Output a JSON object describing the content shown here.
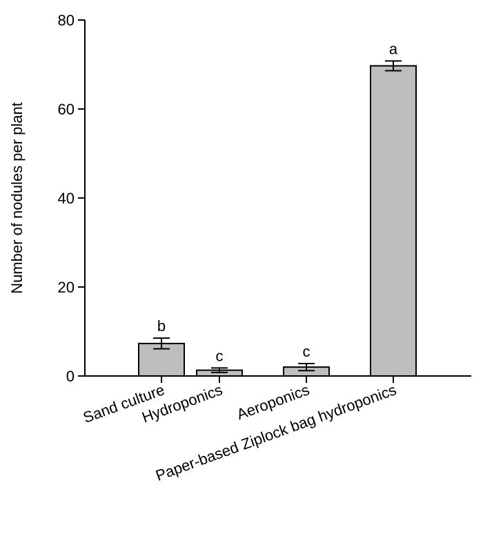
{
  "chart_data": {
    "type": "bar",
    "title": "",
    "xlabel": "",
    "ylabel": "Number of nodules per plant",
    "ylim": [
      0,
      80
    ],
    "yticks": [
      0,
      20,
      40,
      60,
      80
    ],
    "categories": [
      "Sand culture",
      "Hydroponics",
      "Aeroponics",
      "Paper-based Ziplock bag hydroponics"
    ],
    "values": [
      7.3,
      1.3,
      2.0,
      69.7
    ],
    "errors": [
      1.2,
      0.5,
      0.8,
      1.1
    ],
    "significance": [
      "b",
      "c",
      "c",
      "a"
    ],
    "grid": false,
    "legend": "none",
    "bar_color": "#bebebe",
    "edge_color": "#000000"
  }
}
